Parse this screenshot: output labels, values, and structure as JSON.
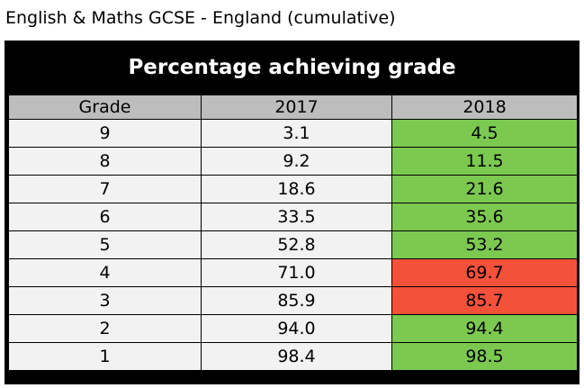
{
  "caption": "English & Maths GCSE - England (cumulative)",
  "chart_data": {
    "type": "table",
    "title": "Percentage achieving grade",
    "columns": [
      "Grade",
      "2017",
      "2018"
    ],
    "rows": [
      {
        "grade": "9",
        "y2017": "3.1",
        "y2018": "4.5"
      },
      {
        "grade": "8",
        "y2017": "9.2",
        "y2018": "11.5"
      },
      {
        "grade": "7",
        "y2017": "18.6",
        "y2018": "21.6"
      },
      {
        "grade": "6",
        "y2017": "33.5",
        "y2018": "35.6"
      },
      {
        "grade": "5",
        "y2017": "52.8",
        "y2018": "53.2"
      },
      {
        "grade": "4",
        "y2017": "71.0",
        "y2018": "69.7"
      },
      {
        "grade": "3",
        "y2017": "85.9",
        "y2018": "85.7"
      },
      {
        "grade": "2",
        "y2017": "94.0",
        "y2018": "94.4"
      },
      {
        "grade": "1",
        "y2017": "98.4",
        "y2018": "98.5"
      }
    ]
  },
  "colors": {
    "header_bar": "#000000",
    "column_header": "#bdbdbd",
    "cell": "#f2f2f2",
    "increase": "#7cc950",
    "decrease": "#f4513b"
  }
}
